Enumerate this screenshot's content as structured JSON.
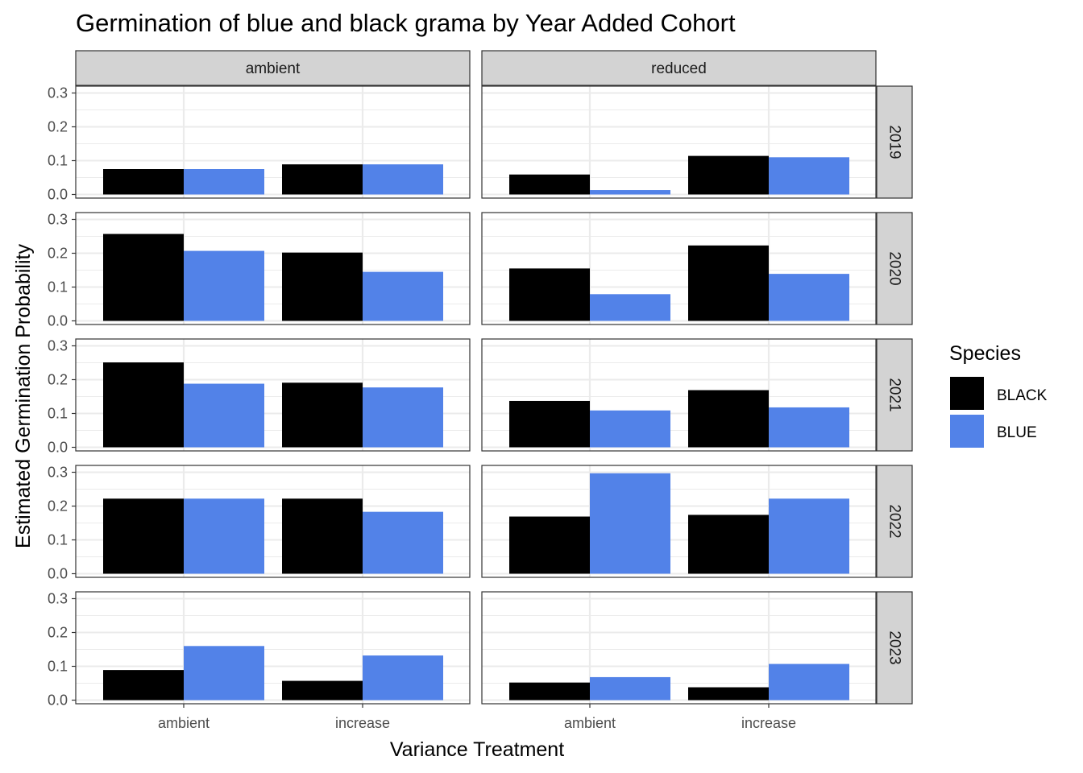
{
  "colors": {
    "BLACK": "#000000",
    "BLUE": "#5282E8",
    "strip_fill": "#D3D3D3",
    "grid": "#EBEBEB",
    "panel_border": "#333333"
  },
  "chart_data": {
    "type": "bar",
    "title": "Germination of blue and black grama by Year Added Cohort",
    "xlabel": "Variance Treatment",
    "ylabel": "Estimated Germination Probability",
    "ylim": [
      0,
      0.3
    ],
    "yticks": [
      "0.0",
      "0.1",
      "0.2",
      "0.3"
    ],
    "categories": [
      "ambient",
      "increase"
    ],
    "facet_columns": [
      "ambient",
      "reduced"
    ],
    "facet_rows": [
      "2019",
      "2020",
      "2021",
      "2022",
      "2023"
    ],
    "legend": {
      "title": "Species",
      "position": "right",
      "entries": [
        "BLACK",
        "BLUE"
      ]
    },
    "grid": true,
    "panels": [
      {
        "col": "ambient",
        "row": "2019",
        "series": [
          {
            "name": "BLACK",
            "values": [
              0.075,
              0.089
            ]
          },
          {
            "name": "BLUE",
            "values": [
              0.075,
              0.089
            ]
          }
        ]
      },
      {
        "col": "reduced",
        "row": "2019",
        "series": [
          {
            "name": "BLACK",
            "values": [
              0.059,
              0.114
            ]
          },
          {
            "name": "BLUE",
            "values": [
              0.013,
              0.11
            ]
          }
        ]
      },
      {
        "col": "ambient",
        "row": "2020",
        "series": [
          {
            "name": "BLACK",
            "values": [
              0.257,
              0.202
            ]
          },
          {
            "name": "BLUE",
            "values": [
              0.207,
              0.145
            ]
          }
        ]
      },
      {
        "col": "reduced",
        "row": "2020",
        "series": [
          {
            "name": "BLACK",
            "values": [
              0.155,
              0.223
            ]
          },
          {
            "name": "BLUE",
            "values": [
              0.079,
              0.139
            ]
          }
        ]
      },
      {
        "col": "ambient",
        "row": "2021",
        "series": [
          {
            "name": "BLACK",
            "values": [
              0.251,
              0.191
            ]
          },
          {
            "name": "BLUE",
            "values": [
              0.188,
              0.177
            ]
          }
        ]
      },
      {
        "col": "reduced",
        "row": "2021",
        "series": [
          {
            "name": "BLACK",
            "values": [
              0.137,
              0.169
            ]
          },
          {
            "name": "BLUE",
            "values": [
              0.109,
              0.118
            ]
          }
        ]
      },
      {
        "col": "ambient",
        "row": "2022",
        "series": [
          {
            "name": "BLACK",
            "values": [
              0.222,
              0.222
            ]
          },
          {
            "name": "BLUE",
            "values": [
              0.222,
              0.183
            ]
          }
        ]
      },
      {
        "col": "reduced",
        "row": "2022",
        "series": [
          {
            "name": "BLACK",
            "values": [
              0.169,
              0.174
            ]
          },
          {
            "name": "BLUE",
            "values": [
              0.297,
              0.222
            ]
          }
        ]
      },
      {
        "col": "ambient",
        "row": "2023",
        "series": [
          {
            "name": "BLACK",
            "values": [
              0.089,
              0.057
            ]
          },
          {
            "name": "BLUE",
            "values": [
              0.16,
              0.132
            ]
          }
        ]
      },
      {
        "col": "reduced",
        "row": "2023",
        "series": [
          {
            "name": "BLACK",
            "values": [
              0.052,
              0.038
            ]
          },
          {
            "name": "BLUE",
            "values": [
              0.068,
              0.107
            ]
          }
        ]
      }
    ]
  }
}
